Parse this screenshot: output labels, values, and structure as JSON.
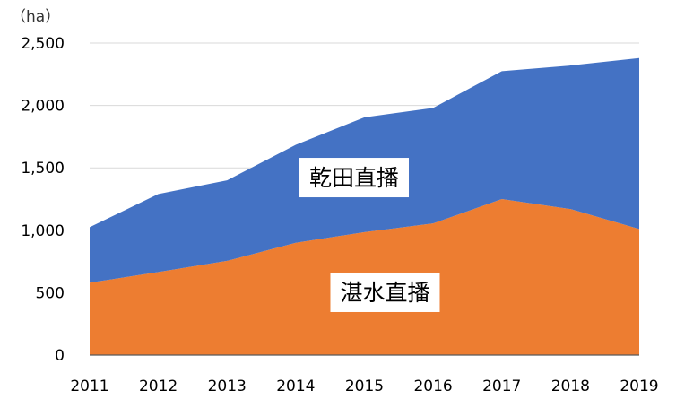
{
  "chart_data": {
    "type": "area",
    "stacked": true,
    "unit_label": "（ha）",
    "x": [
      "2011",
      "2012",
      "2013",
      "2014",
      "2015",
      "2016",
      "2017",
      "2018",
      "2019"
    ],
    "ylim": [
      0,
      2500
    ],
    "yticks": [
      0,
      500,
      1000,
      1500,
      2000,
      2500
    ],
    "ytick_labels": [
      "0",
      "500",
      "1,000",
      "1,500",
      "2,000",
      "2,500"
    ],
    "grid": true,
    "series": [
      {
        "name": "湛水直播",
        "color": "#ED7D31",
        "values": [
          580,
          665,
          755,
          900,
          985,
          1055,
          1250,
          1170,
          1010
        ]
      },
      {
        "name": "乾田直播",
        "color": "#4472C4",
        "values": [
          445,
          625,
          645,
          785,
          920,
          925,
          1025,
          1150,
          1370
        ]
      }
    ]
  }
}
